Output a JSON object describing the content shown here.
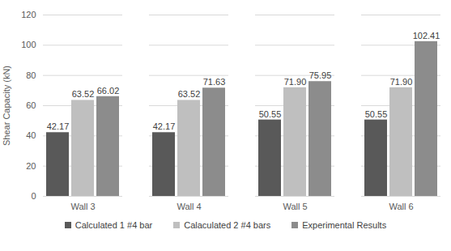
{
  "chart_data": {
    "type": "bar",
    "categories": [
      "Wall 3",
      "Wall 4",
      "Wall 5",
      "Wall 6"
    ],
    "series": [
      {
        "name": "Calculated 1 #4 bar",
        "color": "#595959",
        "values": [
          42.17,
          42.17,
          50.55,
          50.55
        ],
        "value_labels": [
          "42.17",
          "42.17",
          "50.55",
          "50.55"
        ]
      },
      {
        "name": "Calaculated 2 #4 bars",
        "color": "#bfbfbf",
        "values": [
          63.52,
          63.52,
          71.9,
          71.9
        ],
        "value_labels": [
          "63.52",
          "63.52",
          "71.90",
          "71.90"
        ]
      },
      {
        "name": "Experimental Results",
        "color": "#8c8c8c",
        "values": [
          66.02,
          71.63,
          75.95,
          102.41
        ],
        "value_labels": [
          "66.02",
          "71.63",
          "75.95",
          "102.41"
        ]
      }
    ],
    "y_label": "Shear Capacity (kN)",
    "ylim": [
      0,
      120
    ],
    "yticks": [
      0,
      20,
      40,
      60,
      80,
      100,
      120
    ],
    "grid": true,
    "legend": "bottom",
    "data_labels": true
  }
}
